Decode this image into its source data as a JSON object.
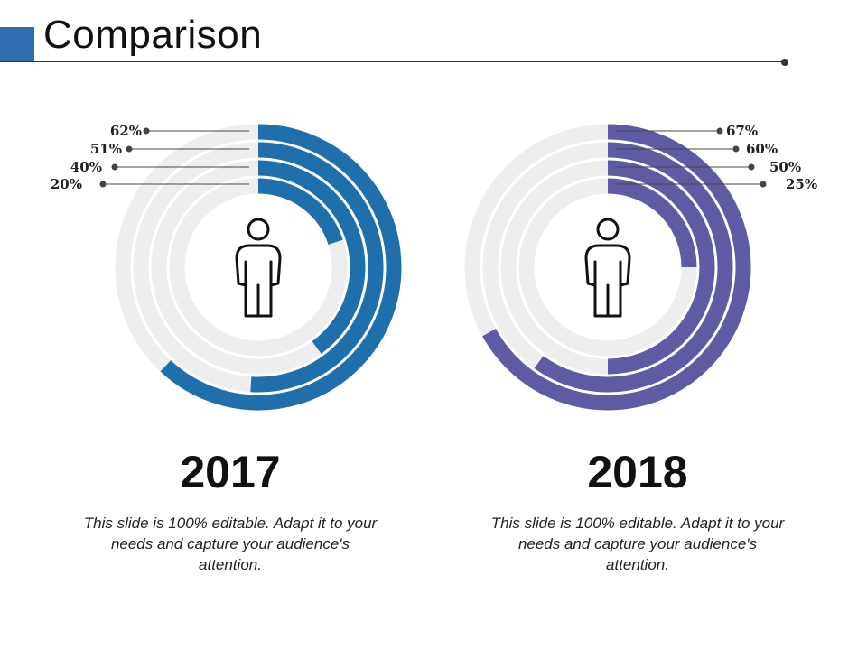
{
  "page": {
    "title": "Comparison",
    "accent_color": "#2e6db0"
  },
  "chart_data": [
    {
      "type": "radial-bar",
      "title": "2017",
      "values": [
        62,
        51,
        40,
        20
      ],
      "labels": [
        "62%",
        "51%",
        "40%",
        "20%"
      ],
      "unit": "%",
      "color": "#1f6fad",
      "track_color": "#eeeeee",
      "label_side": "left",
      "icon": "person-icon",
      "caption": "This slide is 100% editable. Adapt it to your needs and capture your audience's attention."
    },
    {
      "type": "radial-bar",
      "title": "2018",
      "values": [
        67,
        60,
        50,
        25
      ],
      "labels": [
        "67%",
        "60%",
        "50%",
        "25%"
      ],
      "unit": "%",
      "color": "#5e5aa4",
      "track_color": "#eeeeee",
      "label_side": "right",
      "icon": "person-icon",
      "caption": "This slide is 100% editable. Adapt it to your needs and capture your audience's attention."
    }
  ]
}
